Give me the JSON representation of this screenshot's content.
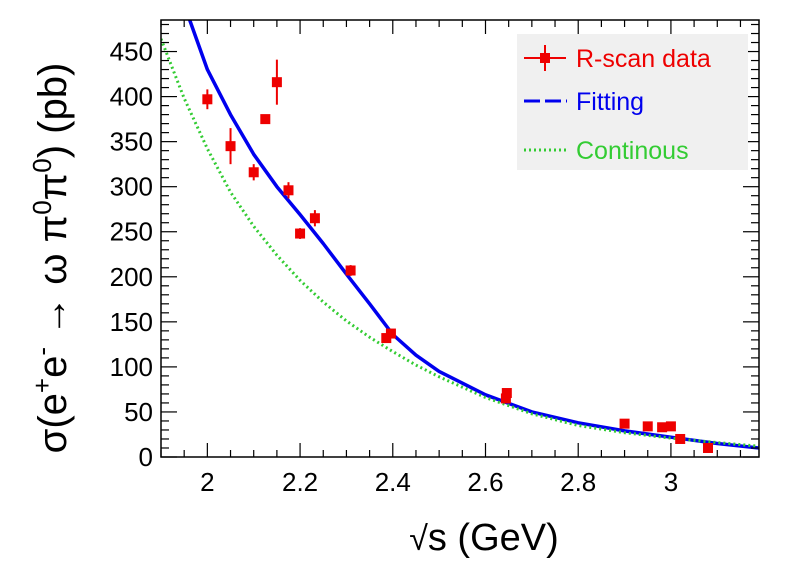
{
  "chart_data": {
    "type": "scatter",
    "xlabel": "√s (GeV)",
    "xlabel_parts": {
      "root": "√",
      "var": "s",
      "unit": " (GeV)"
    },
    "ylabel": "σ(e⁺e⁻ → ω π⁰π⁰) (pb)",
    "ylabel_parts": {
      "pre": "σ(e",
      "sup1": "+",
      "mid": "e",
      "sup2": "-",
      "arrow": " → ω π",
      "sup3": "0",
      "pi": "π",
      "sup4": "0",
      "post": ") (pb)"
    },
    "xlim": [
      1.9,
      3.19
    ],
    "ylim": [
      0,
      485
    ],
    "xticks": [
      2,
      2.2,
      2.4,
      2.6,
      2.8,
      3
    ],
    "xtick_labels": [
      "2",
      "2.2",
      "2.4",
      "2.6",
      "2.8",
      "3"
    ],
    "yticks": [
      0,
      50,
      100,
      150,
      200,
      250,
      300,
      350,
      400,
      450
    ],
    "ytick_labels": [
      "0",
      "50",
      "100",
      "150",
      "200",
      "250",
      "300",
      "350",
      "400",
      "450"
    ],
    "grid": false,
    "legend_position": "top-right",
    "series": [
      {
        "name": "R-scan data",
        "kind": "points",
        "color": "#ee0000",
        "points": [
          {
            "x": 2.0,
            "y": 397,
            "err": 11
          },
          {
            "x": 2.05,
            "y": 345,
            "err": 20
          },
          {
            "x": 2.1,
            "y": 316,
            "err": 9
          },
          {
            "x": 2.125,
            "y": 375,
            "err": 3
          },
          {
            "x": 2.15,
            "y": 416,
            "err": 25
          },
          {
            "x": 2.175,
            "y": 296,
            "err": 9
          },
          {
            "x": 2.2,
            "y": 248,
            "err": 6
          },
          {
            "x": 2.232,
            "y": 265,
            "err": 9
          },
          {
            "x": 2.309,
            "y": 207,
            "err": 6
          },
          {
            "x": 2.386,
            "y": 132,
            "err": 4
          },
          {
            "x": 2.396,
            "y": 137,
            "err": 4
          },
          {
            "x": 2.644,
            "y": 65,
            "err": 4
          },
          {
            "x": 2.646,
            "y": 71,
            "err": 4
          },
          {
            "x": 2.9,
            "y": 37,
            "err": 3
          },
          {
            "x": 2.95,
            "y": 34,
            "err": 3
          },
          {
            "x": 2.981,
            "y": 33,
            "err": 3
          },
          {
            "x": 3.0,
            "y": 34,
            "err": 3
          },
          {
            "x": 3.02,
            "y": 20,
            "err": 3
          },
          {
            "x": 3.08,
            "y": 10,
            "err": 3
          }
        ]
      },
      {
        "name": "Fitting",
        "kind": "line",
        "color": "#0000ee",
        "dash": "long-dash",
        "x": [
          1.962,
          2.0,
          2.05,
          2.1,
          2.15,
          2.2,
          2.25,
          2.3,
          2.35,
          2.4,
          2.45,
          2.5,
          2.6,
          2.7,
          2.8,
          2.9,
          3.0,
          3.1,
          3.19
        ],
        "y": [
          485,
          430,
          380,
          336,
          300,
          269,
          237,
          203,
          170,
          136,
          113,
          95,
          69,
          50,
          38,
          29,
          22,
          15,
          10
        ]
      },
      {
        "name": "Continous",
        "kind": "line",
        "color": "#33cc33",
        "dash": "dotted",
        "x": [
          1.9,
          1.95,
          2.0,
          2.05,
          2.1,
          2.15,
          2.2,
          2.25,
          2.3,
          2.35,
          2.4,
          2.45,
          2.5,
          2.6,
          2.7,
          2.8,
          2.9,
          3.0,
          3.1,
          3.19
        ],
        "y": [
          464,
          398,
          342,
          294,
          256,
          224,
          196,
          172,
          151,
          133,
          117,
          102,
          89,
          66,
          48,
          35,
          27,
          21,
          16,
          12
        ]
      }
    ]
  }
}
